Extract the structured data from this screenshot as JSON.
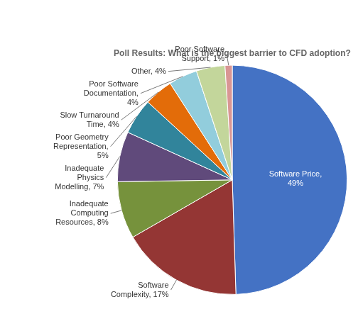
{
  "chart_data": {
    "type": "pie",
    "title": "Poll Results: What is the biggest barrier to CFD adoption?",
    "categories": [
      "Software Price,\n49%",
      "Software\nComplexity, 17%",
      "Inadequate\nComputing\nResources, 8%",
      "Inadequate\nPhysics\nModelling, 7%",
      "Poor Geometry\nRepresentation,\n5%",
      "Slow Turnaround\nTime, 4%",
      "Poor Software\nDocumentation,\n4%",
      "Other, 4%",
      "Poor Software\nSupport, 1%"
    ],
    "values": [
      49,
      17,
      8,
      7,
      5,
      4,
      4,
      4,
      1
    ],
    "colors": [
      "#4472C4",
      "#943634",
      "#76923C",
      "#604A7B",
      "#31849B",
      "#E36C09",
      "#92CDDC",
      "#C3D69B",
      "#D99694"
    ]
  }
}
